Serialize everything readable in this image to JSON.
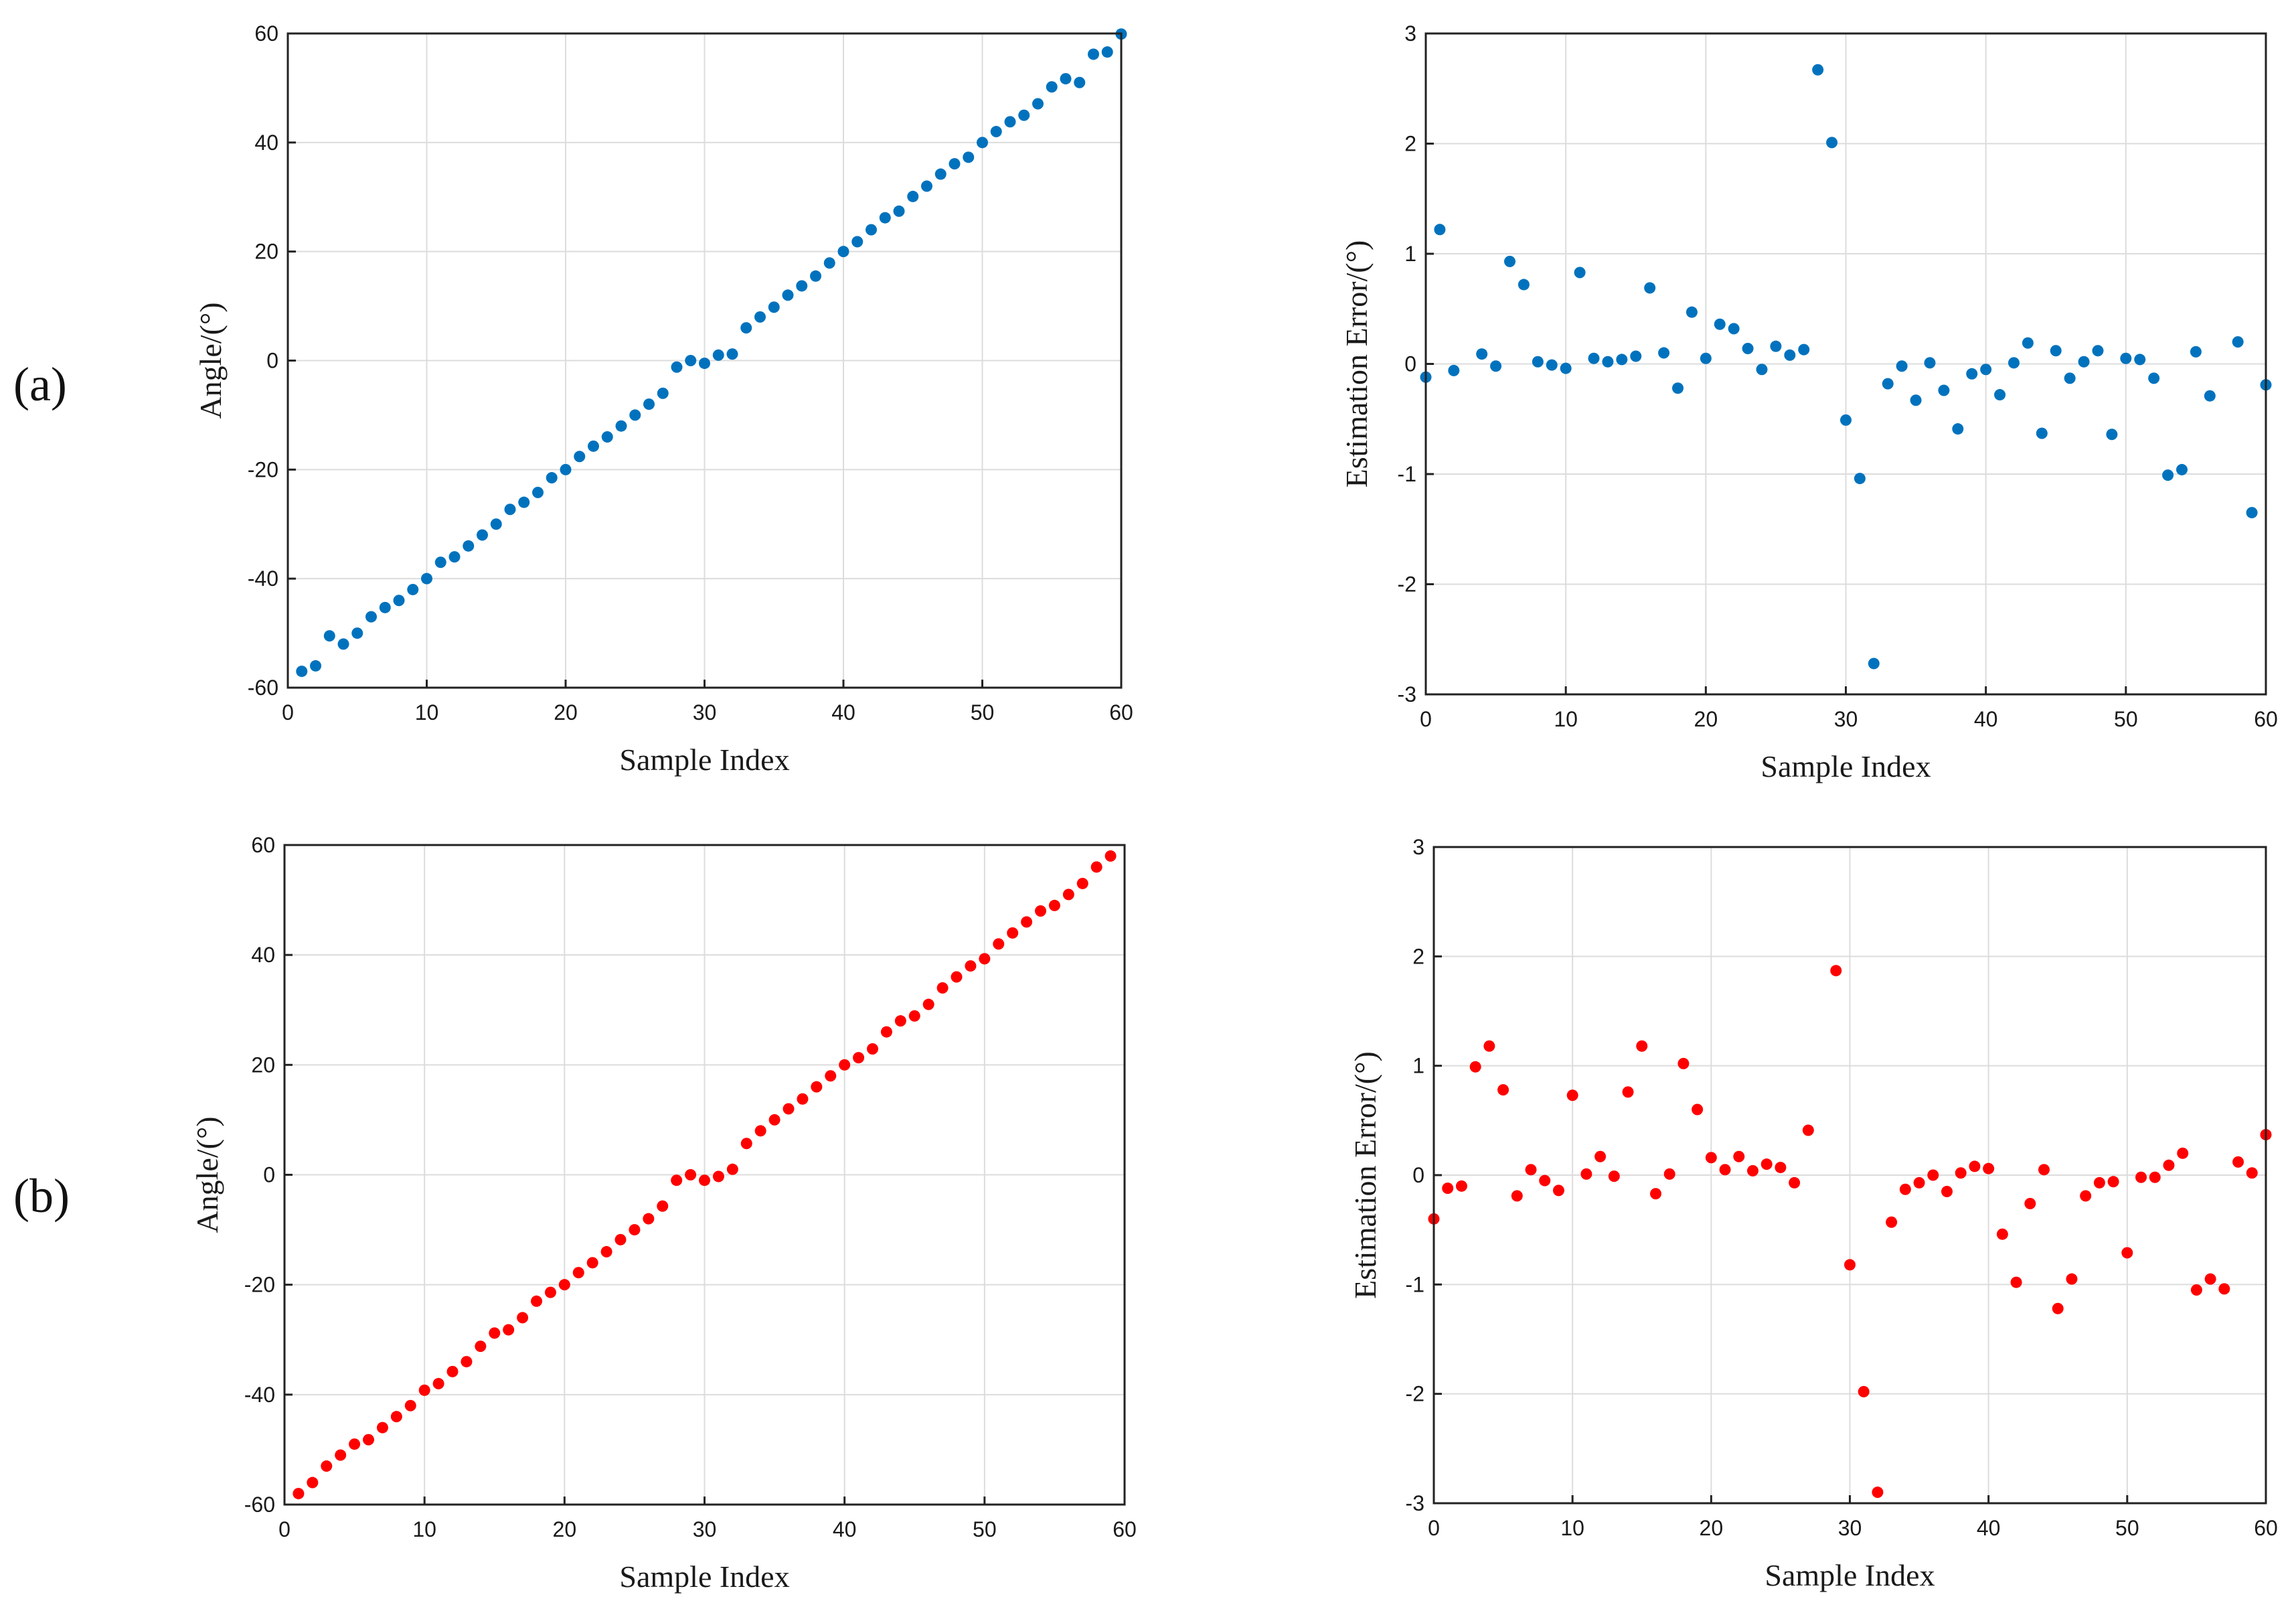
{
  "panel_labels": [
    "(a)",
    "(b)"
  ],
  "chart_data": [
    {
      "type": "scatter",
      "title": "",
      "xlabel": "Sample Index",
      "ylabel": "Angle/(°)",
      "xlim": [
        0,
        60
      ],
      "ylim": [
        -60,
        60
      ],
      "xticks": [
        0,
        10,
        20,
        30,
        40,
        50,
        60
      ],
      "yticks": [
        -60,
        -40,
        -20,
        0,
        20,
        40,
        60
      ],
      "grid": true,
      "color": "#0072BD",
      "x": [
        1,
        2,
        3,
        4,
        5,
        6,
        7,
        8,
        9,
        10,
        11,
        12,
        13,
        14,
        15,
        16,
        17,
        18,
        19,
        20,
        21,
        22,
        23,
        24,
        25,
        26,
        27,
        28,
        29,
        30,
        31,
        32,
        33,
        34,
        35,
        36,
        37,
        38,
        39,
        40,
        41,
        42,
        43,
        44,
        45,
        46,
        47,
        48,
        49,
        50,
        51,
        52,
        53,
        54,
        55,
        56,
        57,
        58,
        59,
        60
      ],
      "y": [
        -57,
        -56,
        -50.5,
        -52,
        -50,
        -47,
        -45.3,
        -44,
        -42,
        -40,
        -37,
        -36,
        -34,
        -32,
        -30,
        -27.3,
        -26,
        -24.2,
        -21.5,
        -20,
        -17.6,
        -15.7,
        -14,
        -12,
        -10,
        -8,
        -6,
        -1.2,
        0,
        -0.5,
        1,
        1.2,
        6,
        8,
        9.8,
        12,
        13.7,
        15.5,
        17.9,
        20,
        21.8,
        24,
        26.2,
        27.4,
        30.1,
        32,
        34.2,
        36.1,
        37.3,
        40,
        42,
        43.8,
        45,
        47.1,
        50.2,
        51.7,
        51,
        56.2,
        56.6,
        59.9
      ]
    },
    {
      "type": "scatter",
      "title": "",
      "xlabel": "Sample Index",
      "ylabel": "Estimation Error/(°)",
      "xlim": [
        0,
        60
      ],
      "ylim": [
        -3,
        3
      ],
      "xticks": [
        0,
        10,
        20,
        30,
        40,
        50,
        60
      ],
      "yticks": [
        -3,
        -2,
        -1,
        0,
        1,
        2,
        3
      ],
      "grid": true,
      "color": "#0072BD",
      "x": [
        0,
        1,
        2,
        4,
        5,
        6,
        7,
        8,
        9,
        10,
        11,
        12,
        13,
        14,
        15,
        16,
        17,
        18,
        19,
        20,
        21,
        22,
        23,
        24,
        25,
        26,
        27,
        28,
        29,
        30,
        31,
        32,
        33,
        34,
        35,
        36,
        37,
        38,
        39,
        40,
        41,
        42,
        43,
        44,
        45,
        46,
        47,
        48,
        49,
        50,
        51,
        52,
        53,
        54,
        55,
        56,
        58,
        59,
        60
      ],
      "y": [
        -0.12,
        1.22,
        -0.06,
        0.09,
        -0.02,
        0.93,
        0.72,
        0.02,
        -0.01,
        -0.04,
        0.83,
        0.05,
        0.02,
        0.04,
        0.07,
        0.69,
        0.1,
        -0.22,
        0.47,
        0.05,
        0.36,
        0.32,
        0.14,
        -0.05,
        0.16,
        0.08,
        0.13,
        2.67,
        2.01,
        -0.51,
        -1.04,
        -2.72,
        -0.18,
        -0.02,
        -0.33,
        0.01,
        -0.24,
        -0.59,
        -0.09,
        -0.05,
        -0.28,
        0.01,
        0.19,
        -0.63,
        0.12,
        -0.13,
        0.02,
        0.12,
        -0.64,
        0.05,
        0.04,
        -0.13,
        -1.01,
        -0.96,
        0.11,
        -0.29,
        0.2,
        -1.35,
        -0.19
      ]
    },
    {
      "type": "scatter",
      "title": "",
      "xlabel": "Sample Index",
      "ylabel": "Angle/(°)",
      "xlim": [
        0,
        60
      ],
      "ylim": [
        -60,
        60
      ],
      "xticks": [
        0,
        10,
        20,
        30,
        40,
        50,
        60
      ],
      "yticks": [
        -60,
        -40,
        -20,
        0,
        20,
        40,
        60
      ],
      "grid": true,
      "color": "#FF0000",
      "x": [
        1,
        2,
        3,
        4,
        5,
        6,
        7,
        8,
        9,
        10,
        11,
        12,
        13,
        14,
        15,
        16,
        17,
        18,
        19,
        20,
        21,
        22,
        23,
        24,
        25,
        26,
        27,
        28,
        29,
        30,
        31,
        32,
        33,
        34,
        35,
        36,
        37,
        38,
        39,
        40,
        41,
        42,
        43,
        44,
        45,
        46,
        47,
        48,
        49,
        50,
        51,
        52,
        53,
        54,
        55,
        56,
        57,
        58,
        59
      ],
      "y": [
        -58,
        -56,
        -53,
        -51,
        -49,
        -48.2,
        -46,
        -44,
        -42,
        -39.2,
        -38,
        -35.8,
        -34,
        -31.2,
        -28.8,
        -28.2,
        -26,
        -23,
        -21.4,
        -20,
        -17.8,
        -16,
        -14,
        -11.8,
        -10,
        -8,
        -5.7,
        -1,
        0,
        -1,
        -0.3,
        1,
        5.7,
        8,
        10,
        12,
        13.8,
        16,
        18,
        20,
        21.3,
        22.9,
        26,
        28,
        28.9,
        31,
        34,
        36,
        38,
        39.3,
        42,
        44,
        46,
        48,
        49,
        51,
        53,
        56,
        58
      ]
    },
    {
      "type": "scatter",
      "title": "",
      "xlabel": "Sample Index",
      "ylabel": "Estimation Error/(°)",
      "xlim": [
        0,
        60
      ],
      "ylim": [
        -3,
        3
      ],
      "xticks": [
        0,
        10,
        20,
        30,
        40,
        50,
        60
      ],
      "yticks": [
        -3,
        -2,
        -1,
        0,
        1,
        2,
        3
      ],
      "grid": true,
      "color": "#FF0000",
      "x": [
        0,
        1,
        2,
        3,
        4,
        5,
        6,
        7,
        8,
        9,
        10,
        11,
        12,
        13,
        14,
        15,
        16,
        17,
        18,
        19,
        20,
        21,
        22,
        23,
        24,
        25,
        26,
        27,
        29,
        30,
        31,
        32,
        33,
        34,
        35,
        36,
        37,
        38,
        39,
        40,
        41,
        42,
        43,
        44,
        45,
        46,
        47,
        48,
        49,
        50,
        51,
        52,
        53,
        54,
        55,
        56,
        57,
        58,
        59,
        60
      ],
      "y": [
        -0.4,
        -0.12,
        -0.1,
        0.99,
        1.18,
        0.78,
        -0.19,
        0.05,
        -0.05,
        -0.14,
        0.73,
        0.01,
        0.17,
        -0.01,
        0.76,
        1.18,
        -0.17,
        0.01,
        1.02,
        0.6,
        0.16,
        0.05,
        0.17,
        0.04,
        0.1,
        0.07,
        -0.07,
        0.41,
        1.87,
        -0.82,
        -1.98,
        -2.9,
        -0.43,
        -0.13,
        -0.07,
        0,
        -0.15,
        0.02,
        0.08,
        0.06,
        -0.54,
        -0.98,
        -0.26,
        0.05,
        -1.22,
        -0.95,
        -0.19,
        -0.07,
        -0.06,
        -0.71,
        -0.02,
        -0.02,
        0.09,
        0.2,
        -1.05,
        -0.95,
        -1.04,
        0.12,
        0.02,
        0.37
      ]
    }
  ]
}
